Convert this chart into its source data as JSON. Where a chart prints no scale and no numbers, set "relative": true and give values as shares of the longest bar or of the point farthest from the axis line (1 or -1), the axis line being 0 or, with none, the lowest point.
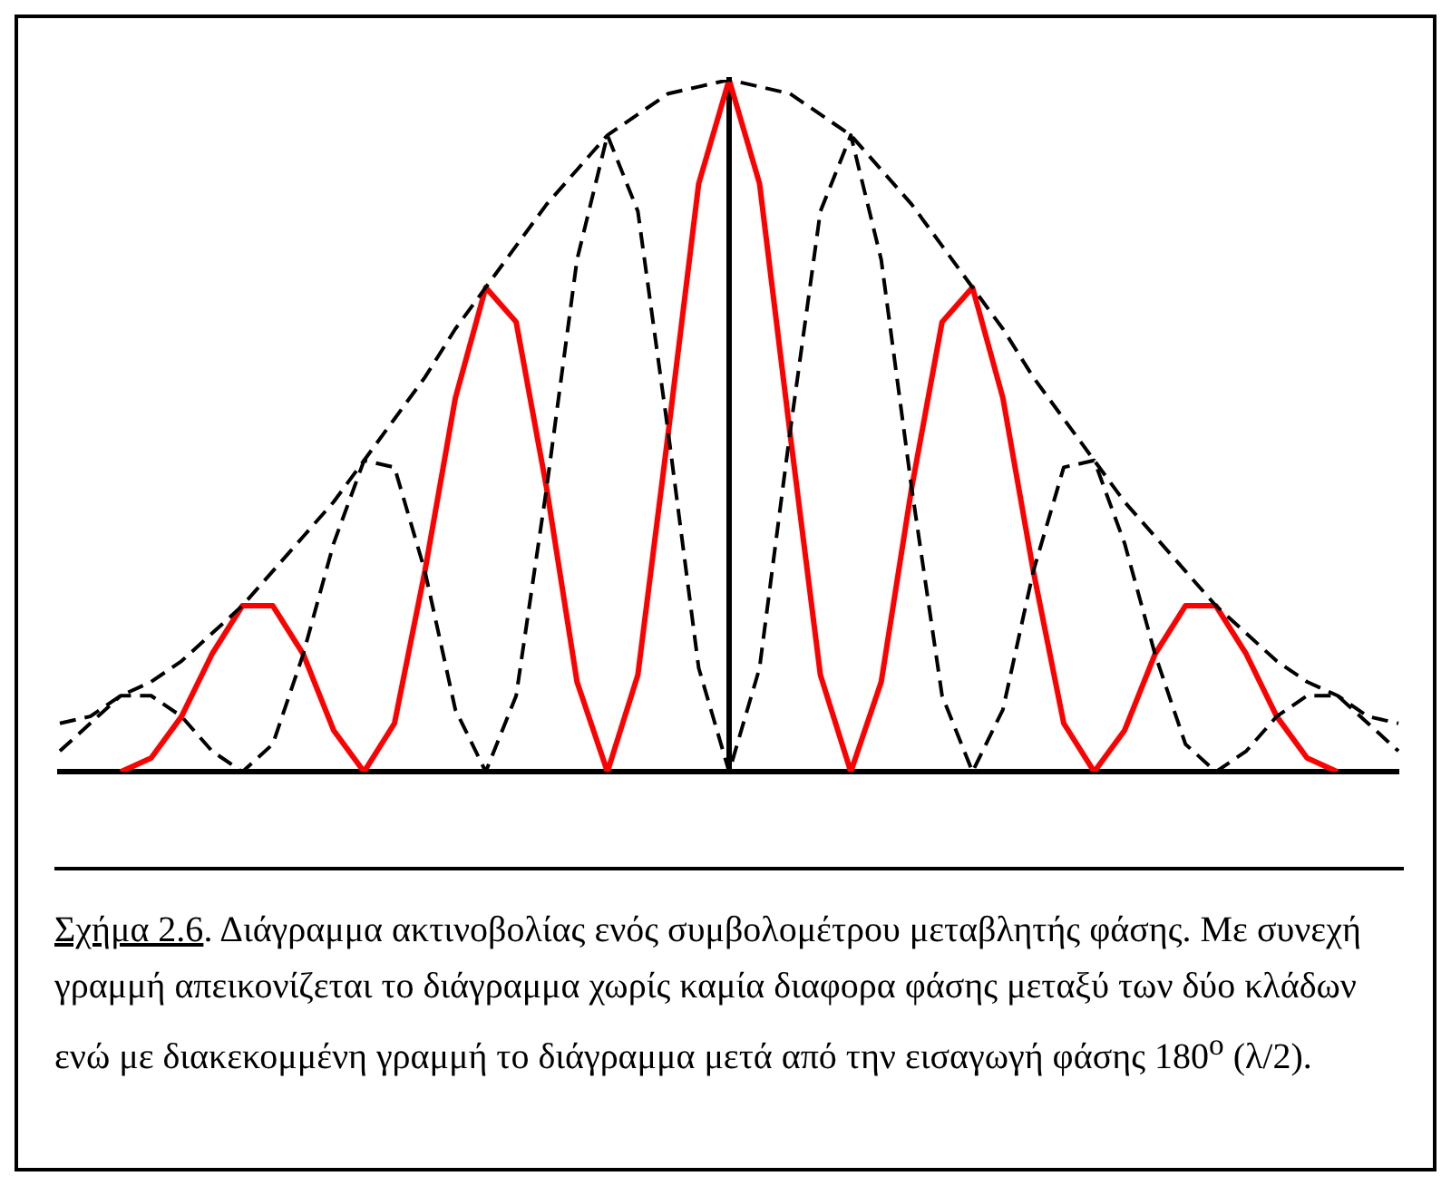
{
  "chart_data": {
    "type": "line",
    "relative": true,
    "grid": false,
    "legend": false,
    "categories": [
      null,
      null,
      null,
      null,
      null,
      null,
      null,
      null,
      null,
      null,
      null,
      null,
      null,
      null,
      null,
      null,
      null,
      null,
      null,
      null,
      null,
      null,
      null,
      null,
      null,
      null,
      null,
      null,
      null,
      null,
      null,
      null,
      null,
      null,
      null,
      null,
      null,
      null,
      null,
      null,
      null,
      null,
      null,
      null,
      null
    ],
    "series": [
      {
        "color": "#000000",
        "line_style": "dashed",
        "values": [
          0.07,
          0.08,
          0.11,
          0.13,
          0.16,
          0.2,
          0.24,
          0.29,
          0.34,
          0.39,
          0.45,
          0.51,
          0.57,
          0.64,
          0.7,
          0.76,
          0.82,
          0.87,
          0.92,
          0.95,
          0.98,
          0.99,
          1,
          0.99,
          0.98,
          0.95,
          0.92,
          0.87,
          0.82,
          0.76,
          0.7,
          0.64,
          0.57,
          0.51,
          0.45,
          0.39,
          0.34,
          0.29,
          0.24,
          0.2,
          0.16,
          0.13,
          0.11,
          0.08,
          0.07
        ]
      },
      {
        "color": "#000000",
        "line_style": "dashed",
        "values": [
          0.03,
          0.07,
          0.11,
          0.11,
          0.08,
          0.03,
          0,
          0.04,
          0.17,
          0.33,
          0.45,
          0.44,
          0.29,
          0.09,
          0,
          0.11,
          0.41,
          0.74,
          0.92,
          0.81,
          0.49,
          0.15,
          0,
          0.15,
          0.49,
          0.81,
          0.92,
          0.74,
          0.41,
          0.11,
          0,
          0.09,
          0.29,
          0.44,
          0.45,
          0.33,
          0.17,
          0.04,
          0,
          0.03,
          0.08,
          0.11,
          0.11,
          0.07,
          0.03
        ]
      },
      {
        "color": "#ff0000",
        "line_style": "solid",
        "values": [
          null,
          null,
          0,
          0.02,
          0.08,
          0.17,
          0.24,
          0.24,
          0.17,
          0.06,
          0,
          0.07,
          0.29,
          0.54,
          0.7,
          0.65,
          0.41,
          0.13,
          0,
          0.14,
          0.49,
          0.85,
          1,
          0.85,
          0.49,
          0.14,
          0,
          0.13,
          0.41,
          0.65,
          0.7,
          0.54,
          0.29,
          0.07,
          0,
          0.06,
          0.17,
          0.24,
          0.24,
          0.17,
          0.08,
          0.02,
          0,
          null,
          null
        ]
      }
    ],
    "annotations": [
      "Σχήμα 2.6",
      ".  Διάγραμμα ακτινοβολίας ενός συμβολομέτρου μεταβλητής φάσης. Με συνεχή γραμμή απεικονίζεται το διάγραμμα χωρίς καμία διαφορα φάσης μεταξύ των δύο κλάδων ενώ με  διακεκομμένη γραμμή το διάγραμμα μετά από την εισαγωγή φάσης 180$^{o}$ (λ/2)."
    ]
  }
}
